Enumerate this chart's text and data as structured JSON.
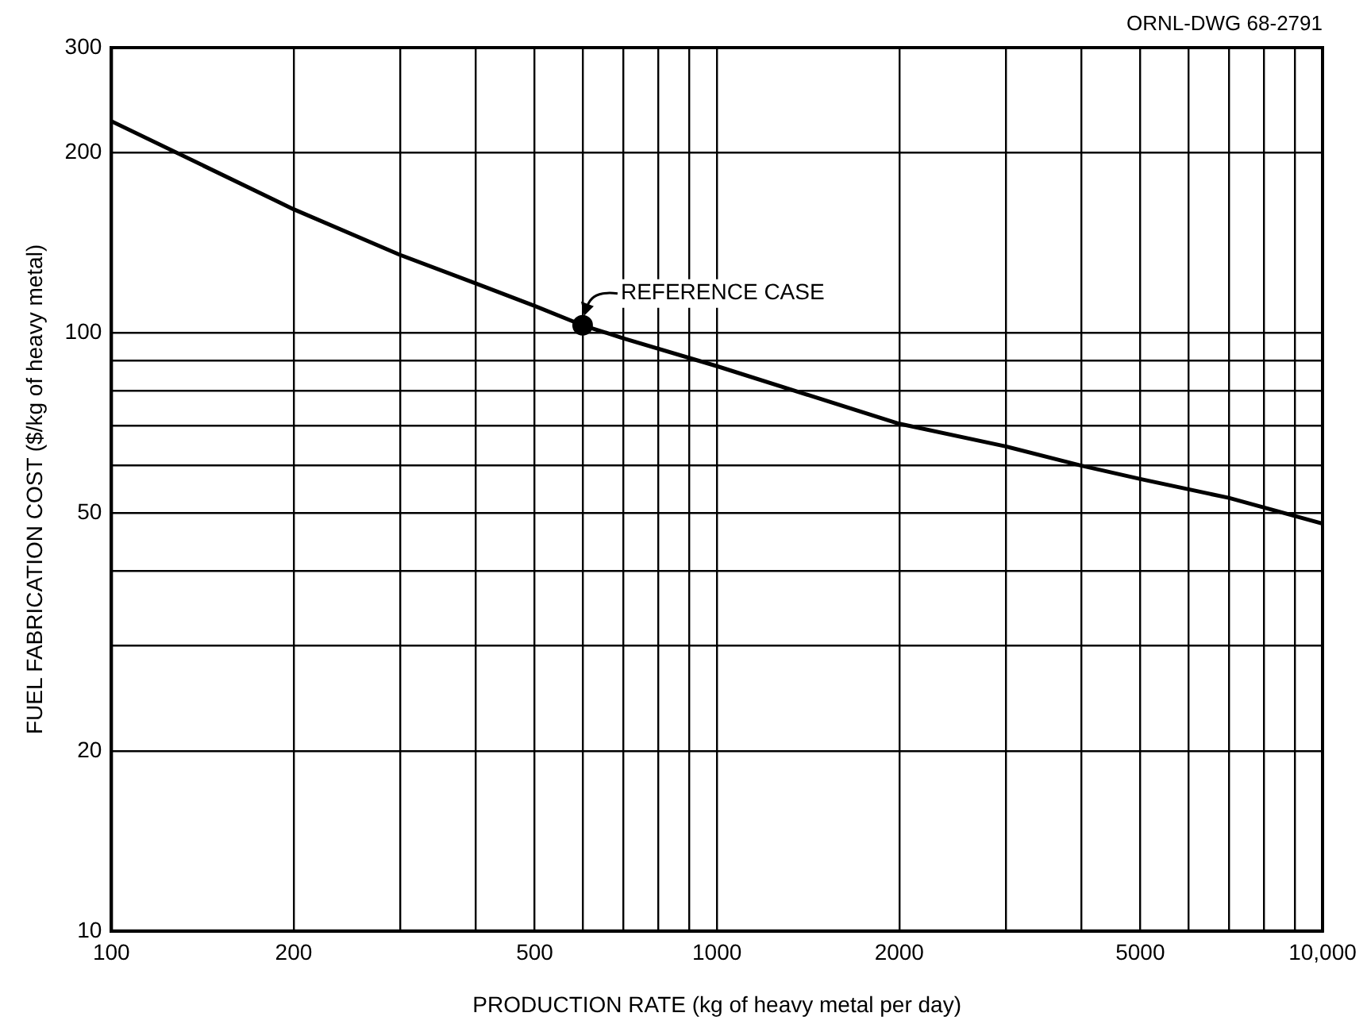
{
  "chart_data": {
    "type": "line",
    "xlabel": "PRODUCTION RATE (kg of heavy metal per day)",
    "ylabel": "FUEL FABRICATION COST ($/kg of heavy metal)",
    "log": "xy",
    "grid": true,
    "legend": false,
    "marker": "none",
    "line_style": "solid",
    "xlim": [
      100,
      10000
    ],
    "ylim": [
      10,
      300
    ],
    "xticks": [
      100,
      200,
      {
        "value": 300,
        "label": null
      },
      {
        "value": 400,
        "label": null
      },
      500,
      {
        "value": 600,
        "label": null
      },
      {
        "value": 700,
        "label": null
      },
      {
        "value": 800,
        "label": null
      },
      {
        "value": 900,
        "label": null
      },
      1000,
      2000,
      {
        "value": 3000,
        "label": null
      },
      {
        "value": 4000,
        "label": null
      },
      5000,
      {
        "value": 6000,
        "label": null
      },
      {
        "value": 7000,
        "label": null
      },
      {
        "value": 8000,
        "label": null
      },
      {
        "value": 9000,
        "label": null
      },
      {
        "value": 10000,
        "label": "10,000"
      }
    ],
    "yticks": [
      10,
      20,
      {
        "value": 30,
        "label": null
      },
      {
        "value": 40,
        "label": null
      },
      50,
      {
        "value": 60,
        "label": null
      },
      {
        "value": 70,
        "label": null
      },
      {
        "value": 80,
        "label": null
      },
      {
        "value": 90,
        "label": null
      },
      100,
      200,
      300
    ],
    "series": [
      {
        "type": "line",
        "color": "#000000",
        "x": [
          100,
          200,
          300,
          400,
          500,
          600,
          700,
          1000,
          2000,
          3000,
          4000,
          5000,
          7000,
          10000
        ],
        "values": [
          226,
          161,
          135,
          121,
          111,
          103,
          98,
          88,
          70.5,
          64.6,
          60,
          57,
          53,
          48
        ]
      },
      {
        "type": "scatter",
        "color": "#000000",
        "marker": "circle",
        "x": [
          600
        ],
        "values": [
          103
        ]
      }
    ],
    "annotations": [
      {
        "text": "REFERENCE CASE",
        "x": 600,
        "y": 103
      },
      "ORNL-DWG 68-2791"
    ]
  }
}
